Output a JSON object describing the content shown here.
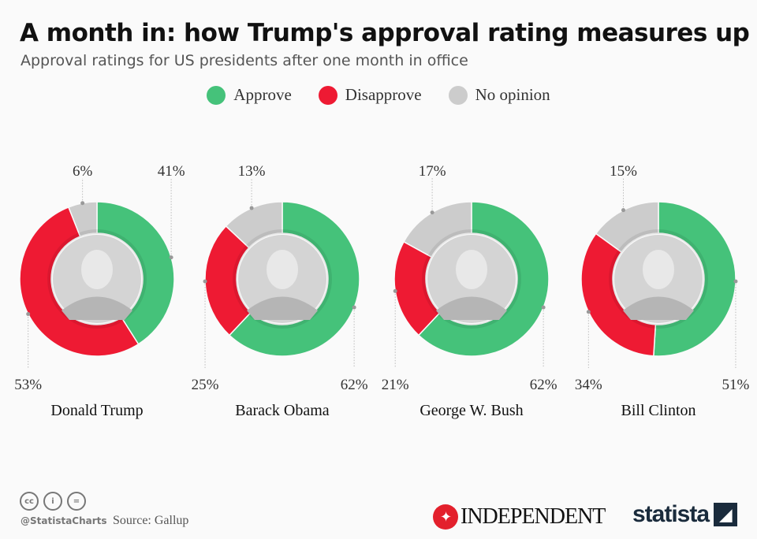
{
  "title": "A month in: how Trump's approval rating measures up",
  "subtitle": "Approval ratings for US presidents after one month in office",
  "legend": [
    {
      "label": "Approve",
      "color": "#45c27a"
    },
    {
      "label": "Disapprove",
      "color": "#ee1a33"
    },
    {
      "label": "No opinion",
      "color": "#cccccc"
    }
  ],
  "chart_data": {
    "type": "pie",
    "variant": "donut",
    "unit": "%",
    "categories": [
      "Approve",
      "Disapprove",
      "No opinion"
    ],
    "charts": [
      {
        "name": "Donald Trump",
        "values": [
          41,
          53,
          6
        ]
      },
      {
        "name": "Barack Obama",
        "values": [
          62,
          25,
          13
        ]
      },
      {
        "name": "George W. Bush",
        "values": [
          62,
          21,
          17
        ]
      },
      {
        "name": "Bill Clinton",
        "values": [
          51,
          34,
          15
        ]
      }
    ]
  },
  "footer": {
    "handle": "@StatistaCharts",
    "source": "Source: Gallup",
    "publisher": "INDEPENDENT",
    "brand": "statista"
  }
}
